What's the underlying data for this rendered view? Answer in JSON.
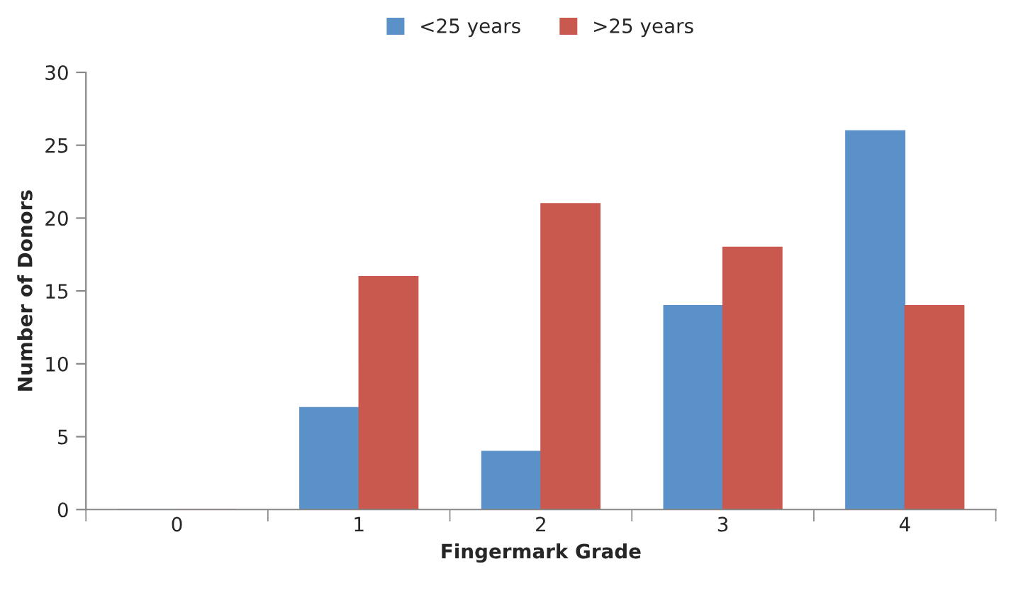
{
  "chart_data": {
    "type": "bar",
    "xlabel": "Fingermark Grade",
    "ylabel": "Number of Donors",
    "categories": [
      "0",
      "1",
      "2",
      "3",
      "4"
    ],
    "series": [
      {
        "name": "<25 years",
        "color": "#5b91c9",
        "values": [
          0,
          7,
          4,
          14,
          26
        ]
      },
      {
        "name": ">25 years",
        "color": "#c9594f",
        "values": [
          0,
          16,
          21,
          18,
          14
        ]
      }
    ],
    "ylim": [
      0,
      30
    ],
    "yticks": [
      0,
      5,
      10,
      15,
      20,
      25,
      30
    ],
    "grid": false,
    "legend": "top"
  }
}
